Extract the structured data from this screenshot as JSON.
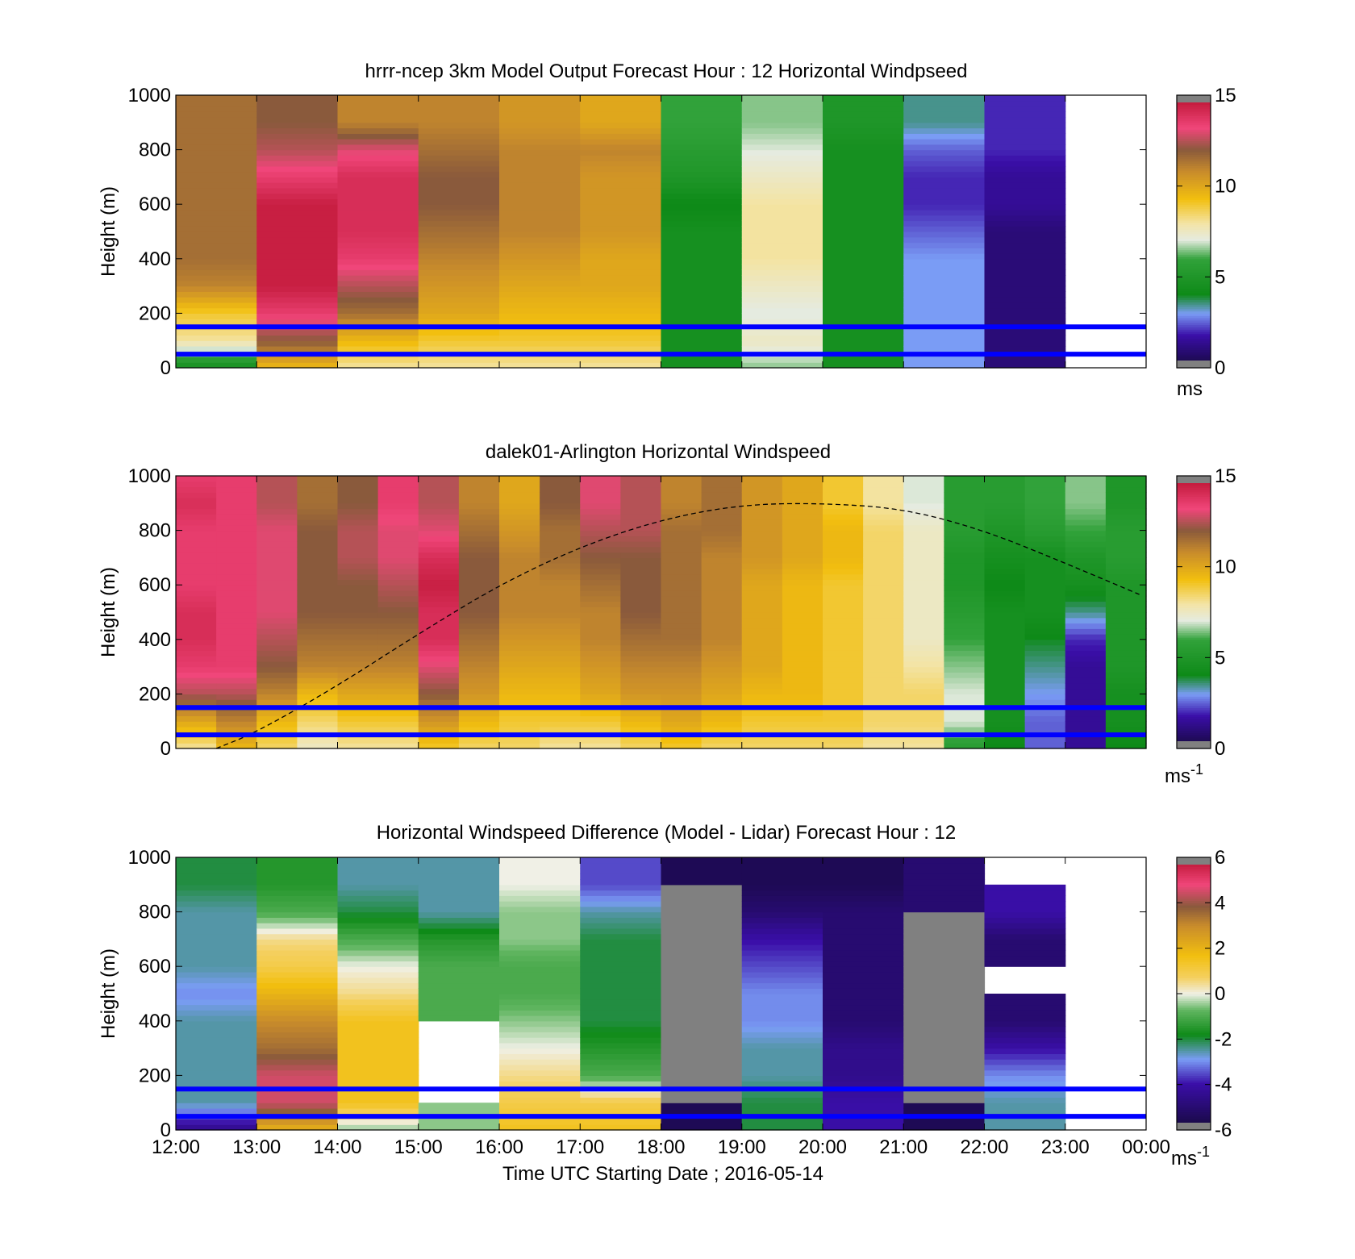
{
  "figure": {
    "xlabel": "Time UTC  Starting Date ; 2016-05-14",
    "x_ticks": [
      "12:00",
      "13:00",
      "14:00",
      "15:00",
      "16:00",
      "17:00",
      "18:00",
      "19:00",
      "20:00",
      "21:00",
      "22:00",
      "23:00",
      "00:00"
    ]
  },
  "colors": {
    "reference_lines": "#0000ff",
    "missing": "#808080",
    "speed_colormap": [
      [
        0.0,
        "#15093a"
      ],
      [
        0.12,
        "#3a0ea8"
      ],
      [
        0.2,
        "#7a9cf5"
      ],
      [
        0.27,
        "#0e8a18"
      ],
      [
        0.4,
        "#31a23a"
      ],
      [
        0.47,
        "#e5ebe0"
      ],
      [
        0.53,
        "#f3e4a6"
      ],
      [
        0.62,
        "#f2bf0f"
      ],
      [
        0.72,
        "#c98c2b"
      ],
      [
        0.8,
        "#8a5a3c"
      ],
      [
        0.88,
        "#f0467a"
      ],
      [
        1.0,
        "#b8102d"
      ]
    ],
    "diff_colormap": [
      [
        0.0,
        "#15093a"
      ],
      [
        0.17,
        "#3a0ea8"
      ],
      [
        0.26,
        "#7a9cf5"
      ],
      [
        0.35,
        "#0e8a18"
      ],
      [
        0.44,
        "#60b560"
      ],
      [
        0.5,
        "#f0f0e6"
      ],
      [
        0.56,
        "#f4d060"
      ],
      [
        0.64,
        "#f2bf0f"
      ],
      [
        0.75,
        "#c98c2b"
      ],
      [
        0.82,
        "#8a5a3c"
      ],
      [
        0.9,
        "#f0467a"
      ],
      [
        1.0,
        "#b8102d"
      ]
    ]
  },
  "chart_data": [
    {
      "type": "heatmap",
      "title": "hrrr-ncep 3km Model Output   Forecast Hour : 12 Horizontal Windpseed",
      "ylabel": "Height (m)",
      "xlim": [
        "12:00",
        "00:00"
      ],
      "ylim": [
        0,
        1000
      ],
      "y_ticks": [
        0,
        200,
        400,
        600,
        800,
        1000
      ],
      "reference_lines_m": [
        50,
        150
      ],
      "colorbar": {
        "min": 0,
        "max": 15,
        "ticks": [
          0,
          5,
          10,
          15
        ],
        "unit": "ms"
      },
      "x": [
        "12:00",
        "13:00",
        "14:00",
        "15:00",
        "16:00",
        "17:00",
        "18:00",
        "19:00",
        "20:00",
        "21:00",
        "22:00"
      ],
      "heights_m": [
        0,
        100,
        200,
        300,
        400,
        500,
        600,
        700,
        800,
        900,
        1000
      ],
      "values_ms": [
        [
          4.5,
          8.0,
          9.0,
          11.0,
          11.5,
          11.5,
          11.5,
          11.5,
          11.5,
          11.5,
          11.5
        ],
        [
          9.5,
          12.0,
          13.5,
          14.5,
          14.5,
          14.5,
          14.5,
          13.5,
          12.5,
          12.0,
          12.0
        ],
        [
          8.0,
          9.5,
          11.5,
          12.5,
          13.5,
          14.0,
          14.0,
          14.0,
          13.0,
          11.0,
          11.0
        ],
        [
          8.0,
          9.0,
          10.0,
          10.5,
          11.0,
          11.5,
          12.0,
          12.0,
          11.5,
          11.0,
          11.0
        ],
        [
          8.0,
          9.0,
          9.5,
          10.0,
          10.5,
          11.0,
          11.0,
          11.0,
          11.0,
          10.5,
          10.5
        ],
        [
          8.0,
          9.0,
          9.5,
          10.0,
          10.0,
          10.5,
          10.5,
          10.5,
          11.0,
          10.0,
          10.0
        ],
        [
          4.5,
          4.5,
          4.5,
          4.5,
          4.5,
          4.5,
          4.0,
          5.0,
          5.5,
          6.0,
          6.0
        ],
        [
          6.5,
          7.5,
          7.0,
          7.5,
          8.0,
          8.0,
          8.0,
          7.5,
          7.0,
          6.5,
          6.5
        ],
        [
          4.5,
          4.5,
          4.5,
          4.5,
          4.5,
          4.5,
          4.5,
          4.5,
          4.5,
          5.0,
          5.0
        ],
        [
          3.0,
          3.0,
          3.0,
          3.0,
          3.0,
          2.5,
          2.0,
          2.0,
          2.5,
          3.5,
          3.5
        ],
        [
          1.0,
          1.0,
          1.0,
          1.0,
          1.0,
          1.0,
          1.5,
          1.5,
          2.0,
          2.0,
          2.0
        ]
      ]
    },
    {
      "type": "heatmap",
      "title": "dalek01-Arlington  Horizontal Windspeed",
      "ylabel": "Height (m)",
      "xlim": [
        "12:00",
        "00:00"
      ],
      "ylim": [
        0,
        1000
      ],
      "y_ticks": [
        0,
        200,
        400,
        600,
        800,
        1000
      ],
      "reference_lines_m": [
        50,
        150
      ],
      "colorbar": {
        "min": 0,
        "max": 15,
        "ticks": [
          0,
          5,
          10,
          15
        ],
        "unit": "ms-1"
      },
      "x": [
        "12:00",
        "12:30",
        "13:00",
        "13:30",
        "14:00",
        "14:30",
        "15:00",
        "15:30",
        "16:00",
        "16:30",
        "17:00",
        "17:30",
        "18:00",
        "18:30",
        "19:00",
        "19:30",
        "20:00",
        "20:30",
        "21:00",
        "21:30",
        "22:00",
        "22:30",
        "23:00",
        "23:30"
      ],
      "heights_m": [
        0,
        100,
        200,
        300,
        400,
        500,
        600,
        700,
        800,
        900,
        1000
      ],
      "values_ms": [
        [
          8,
          10,
          12.5,
          13.5,
          14,
          14,
          13.5,
          13.5,
          13.5,
          14,
          13.5
        ],
        [
          9.5,
          11,
          12.5,
          13.5,
          13.5,
          13.5,
          13.5,
          13.5,
          13.5,
          13.5,
          13.5
        ],
        [
          8.5,
          9.5,
          11,
          12,
          12.5,
          13,
          13,
          13,
          13,
          12.5,
          12.5
        ],
        [
          7.5,
          8.5,
          9.5,
          11,
          11.5,
          12,
          12,
          12,
          12,
          11.5,
          11.5
        ],
        [
          8,
          9,
          10,
          11,
          11.5,
          12,
          12,
          12.5,
          12.5,
          12,
          12
        ],
        [
          8,
          9,
          10,
          11,
          11.5,
          12,
          12.5,
          13,
          13,
          13.5,
          13.5
        ],
        [
          9,
          10.5,
          12,
          13,
          14,
          14,
          14.5,
          14,
          13,
          12.5,
          12.5
        ],
        [
          8.5,
          9.5,
          10.5,
          11,
          11.5,
          12,
          12,
          12,
          11.5,
          11,
          11
        ],
        [
          8.5,
          9,
          9.5,
          10,
          10.5,
          11,
          11,
          11,
          10.5,
          10,
          10
        ],
        [
          8,
          9,
          9.5,
          10,
          10.5,
          11,
          11,
          11.5,
          11.5,
          12,
          12
        ],
        [
          8,
          9,
          10,
          10.5,
          11,
          11,
          11.5,
          12,
          12.5,
          13,
          13
        ],
        [
          8.5,
          9.5,
          10.5,
          11,
          11.5,
          12,
          12,
          12,
          12.5,
          12.5,
          12.5
        ],
        [
          9,
          10,
          10.5,
          11,
          11.5,
          11.5,
          11.5,
          11.5,
          11.5,
          11,
          11
        ],
        [
          8.5,
          9.5,
          10,
          10.5,
          11,
          11,
          11,
          11,
          11.5,
          11.5,
          11.5
        ],
        [
          8.5,
          9,
          9.5,
          10,
          10,
          10,
          10,
          10.5,
          10.5,
          10.5,
          10.5
        ],
        [
          8.5,
          9,
          9.5,
          9.5,
          9.5,
          9.5,
          9.5,
          10,
          10,
          10,
          10
        ],
        [
          8.5,
          9,
          9,
          9,
          9,
          9,
          9,
          9.5,
          9.5,
          9,
          9
        ],
        [
          8,
          8.5,
          8.5,
          8.5,
          8.5,
          8.5,
          8.5,
          8.5,
          8.5,
          8,
          8
        ],
        [
          8,
          8.5,
          8.5,
          8,
          7.5,
          7.5,
          7.5,
          7.5,
          7.5,
          7,
          7
        ],
        [
          5.5,
          7,
          7,
          6.5,
          6,
          5.5,
          5,
          5,
          5.5,
          5.5,
          5.5
        ],
        [
          4,
          4.5,
          4.5,
          4.5,
          4.5,
          4.5,
          4,
          4.5,
          5,
          5.5,
          5.5
        ],
        [
          2.5,
          2.5,
          3,
          3.5,
          4,
          4.5,
          4.5,
          4.5,
          5.5,
          6,
          6
        ],
        [
          1.5,
          1.5,
          1.5,
          1.5,
          2,
          3.5,
          4.5,
          5,
          6,
          6.5,
          6.5
        ],
        [
          4,
          4.5,
          4.5,
          5,
          5,
          5,
          5,
          5.5,
          5.5,
          5,
          5
        ]
      ],
      "boundary_layer_curve": {
        "x": [
          "12:30",
          "13:00",
          "14:00",
          "15:00",
          "16:00",
          "17:00",
          "18:00",
          "19:00",
          "20:00",
          "21:00",
          "22:00",
          "23:00",
          "23:55"
        ],
        "height_m": [
          0,
          60,
          230,
          420,
          600,
          740,
          840,
          895,
          900,
          880,
          800,
          680,
          565
        ]
      }
    },
    {
      "type": "heatmap",
      "title": "Horizontal Windspeed Difference (Model - Lidar) Forecast Hour : 12",
      "ylabel": "Height (m)",
      "xlim": [
        "12:00",
        "00:00"
      ],
      "ylim": [
        0,
        1000
      ],
      "y_ticks": [
        0,
        200,
        400,
        600,
        800,
        1000
      ],
      "reference_lines_m": [
        50,
        150
      ],
      "colorbar": {
        "min": -6,
        "max": 6,
        "ticks": [
          -6,
          -4,
          -2,
          0,
          2,
          4,
          6
        ],
        "unit": "ms-1"
      },
      "x": [
        "12:00",
        "13:00",
        "14:00",
        "15:00",
        "16:00",
        "17:00",
        "18:00",
        "19:00",
        "20:00",
        "21:00",
        "22:00"
      ],
      "heights_m": [
        0,
        100,
        200,
        300,
        400,
        500,
        600,
        700,
        800,
        900,
        1000
      ],
      "values_ms": [
        [
          -4.5,
          -2.5,
          -2.5,
          -2.5,
          -2.5,
          -3.0,
          -2.5,
          -2.5,
          -2.5,
          -2.0,
          -2.0
        ],
        [
          2.0,
          4.5,
          4.5,
          3.5,
          3.0,
          2.0,
          1.0,
          0.5,
          -1.0,
          -1.5,
          -1.5
        ],
        [
          -0.5,
          1.5,
          1.5,
          1.5,
          1.5,
          0.5,
          0.0,
          -1.0,
          -2.0,
          -2.5,
          -2.5
        ],
        [
          -0.5,
          null,
          null,
          null,
          -1.0,
          -1.0,
          -1.0,
          -1.5,
          -2.5,
          -2.5,
          -2.5
        ],
        [
          1.5,
          1.0,
          0.5,
          0.0,
          -0.5,
          -1.0,
          -1.0,
          -0.5,
          -0.5,
          0.0,
          0.0
        ],
        [
          1.5,
          1.0,
          -1.0,
          -1.5,
          -2.0,
          -2.0,
          -2.0,
          -2.0,
          -2.5,
          -3.5,
          -3.5
        ],
        [
          -5.5,
          "missing",
          "missing",
          "missing",
          "missing",
          "missing",
          "missing",
          "missing",
          "missing",
          -5.5,
          -5.5
        ],
        [
          -2.0,
          -2.0,
          -2.5,
          -2.5,
          -3.0,
          -3.0,
          -3.5,
          -4.0,
          -5.0,
          -5.5,
          -5.5
        ],
        [
          -4.0,
          -4.0,
          -4.5,
          -4.5,
          -5.0,
          -5.0,
          -5.0,
          -5.0,
          -5.0,
          -5.5,
          -5.5
        ],
        [
          -5.5,
          "missing",
          "missing",
          "missing",
          "missing",
          "missing",
          "missing",
          "missing",
          -5.0,
          -5.0,
          -5.0
        ],
        [
          -2.5,
          -2.5,
          -3.0,
          -4.0,
          -5.0,
          null,
          -5.0,
          -5.0,
          -4.0,
          null,
          null
        ]
      ]
    }
  ]
}
